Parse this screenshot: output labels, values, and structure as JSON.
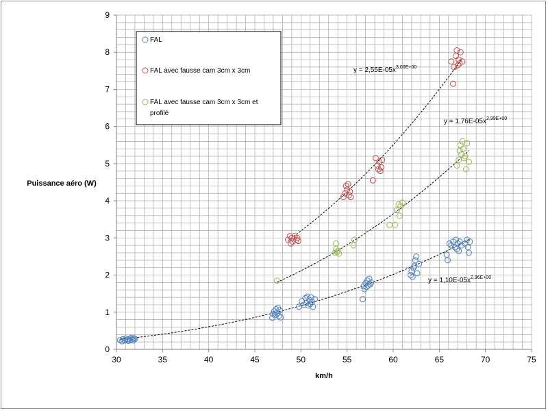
{
  "chart_data": {
    "type": "scatter",
    "xlabel": "km/h",
    "ylabel": "Puissance aéro (W)",
    "xlim": [
      30,
      75
    ],
    "ylim": [
      0,
      9
    ],
    "xticks": [
      30,
      35,
      40,
      45,
      50,
      55,
      60,
      65,
      70,
      75
    ],
    "yticks": [
      0,
      1,
      2,
      3,
      4,
      5,
      6,
      7,
      8,
      9
    ],
    "grid": true,
    "legend_position": "top-left",
    "series": [
      {
        "name": "FAL",
        "color": "#4f81bd",
        "points": [
          [
            30.4,
            0.25
          ],
          [
            30.6,
            0.22
          ],
          [
            30.7,
            0.27
          ],
          [
            30.9,
            0.24
          ],
          [
            31.0,
            0.29
          ],
          [
            31.1,
            0.26
          ],
          [
            31.3,
            0.23
          ],
          [
            31.4,
            0.28
          ],
          [
            31.5,
            0.25
          ],
          [
            31.6,
            0.31
          ],
          [
            31.7,
            0.27
          ],
          [
            31.8,
            0.24
          ],
          [
            31.9,
            0.3
          ],
          [
            32.0,
            0.28
          ],
          [
            46.9,
            0.85
          ],
          [
            47.0,
            0.95
          ],
          [
            47.1,
            1.02
          ],
          [
            47.2,
            0.92
          ],
          [
            47.3,
            1.08
          ],
          [
            47.4,
            0.98
          ],
          [
            47.5,
            1.12
          ],
          [
            47.6,
            0.9
          ],
          [
            47.7,
            1.05
          ],
          [
            47.8,
            0.86
          ],
          [
            49.8,
            1.15
          ],
          [
            50.1,
            1.3
          ],
          [
            50.3,
            1.2
          ],
          [
            50.5,
            1.38
          ],
          [
            50.6,
            1.25
          ],
          [
            50.7,
            1.42
          ],
          [
            50.8,
            1.18
          ],
          [
            50.9,
            1.33
          ],
          [
            51.0,
            1.22
          ],
          [
            51.1,
            1.4
          ],
          [
            51.2,
            1.28
          ],
          [
            51.3,
            1.15
          ],
          [
            51.5,
            1.35
          ],
          [
            56.7,
            1.35
          ],
          [
            56.8,
            1.7
          ],
          [
            56.9,
            1.62
          ],
          [
            57.0,
            1.78
          ],
          [
            57.1,
            1.68
          ],
          [
            57.2,
            1.85
          ],
          [
            57.3,
            1.72
          ],
          [
            57.4,
            1.9
          ],
          [
            57.5,
            1.75
          ],
          [
            57.6,
            1.8
          ],
          [
            61.9,
            2.0
          ],
          [
            62.0,
            2.1
          ],
          [
            62.1,
            1.95
          ],
          [
            62.2,
            2.2
          ],
          [
            62.3,
            2.25
          ],
          [
            62.4,
            2.4
          ],
          [
            62.5,
            2.5
          ],
          [
            62.6,
            2.05
          ],
          [
            62.8,
            2.3
          ],
          [
            65.8,
            2.55
          ],
          [
            65.9,
            2.4
          ],
          [
            66.1,
            2.85
          ],
          [
            66.3,
            2.8
          ],
          [
            66.5,
            2.9
          ],
          [
            66.7,
            2.75
          ],
          [
            66.8,
            2.95
          ],
          [
            66.9,
            2.7
          ],
          [
            67.0,
            2.85
          ],
          [
            67.1,
            2.65
          ],
          [
            67.2,
            2.9
          ],
          [
            67.4,
            2.8
          ],
          [
            67.8,
            2.85
          ],
          [
            68.0,
            2.95
          ],
          [
            68.1,
            2.75
          ],
          [
            68.2,
            2.6
          ],
          [
            68.3,
            2.9
          ]
        ]
      },
      {
        "name": "FAL avec fausse cam 3cm x 3cm",
        "color": "#c0504d",
        "points": [
          [
            48.6,
            2.95
          ],
          [
            48.8,
            3.05
          ],
          [
            48.9,
            2.85
          ],
          [
            49.0,
            3.0
          ],
          [
            49.1,
            2.9
          ],
          [
            49.3,
            3.05
          ],
          [
            49.5,
            2.95
          ],
          [
            49.6,
            3.0
          ],
          [
            49.7,
            2.92
          ],
          [
            54.6,
            4.1
          ],
          [
            54.8,
            4.2
          ],
          [
            54.9,
            4.4
          ],
          [
            55.0,
            4.3
          ],
          [
            55.1,
            4.45
          ],
          [
            55.2,
            4.15
          ],
          [
            55.3,
            4.25
          ],
          [
            55.4,
            4.1
          ],
          [
            57.8,
            4.55
          ],
          [
            58.1,
            5.15
          ],
          [
            58.3,
            4.95
          ],
          [
            58.4,
            4.85
          ],
          [
            58.5,
            5.05
          ],
          [
            58.6,
            4.8
          ],
          [
            58.7,
            4.9
          ],
          [
            58.8,
            5.1
          ],
          [
            66.3,
            7.75
          ],
          [
            66.5,
            7.15
          ],
          [
            66.6,
            7.6
          ],
          [
            66.8,
            7.9
          ],
          [
            66.9,
            8.05
          ],
          [
            67.0,
            7.65
          ],
          [
            67.1,
            7.8
          ],
          [
            67.2,
            7.7
          ],
          [
            67.3,
            8.0
          ],
          [
            67.5,
            7.75
          ]
        ]
      },
      {
        "name": "FAL avec fausse cam 3cm x 3cm et profilé",
        "color": "#9bbb59",
        "points": [
          [
            47.4,
            1.85
          ],
          [
            53.7,
            2.6
          ],
          [
            53.8,
            2.7
          ],
          [
            53.9,
            2.62
          ],
          [
            54.0,
            2.65
          ],
          [
            54.1,
            2.58
          ],
          [
            53.8,
            2.85
          ],
          [
            55.7,
            2.8
          ],
          [
            55.8,
            2.95
          ],
          [
            59.6,
            3.35
          ],
          [
            60.2,
            3.35
          ],
          [
            60.4,
            3.75
          ],
          [
            60.6,
            3.9
          ],
          [
            60.7,
            3.6
          ],
          [
            60.8,
            3.85
          ],
          [
            61.0,
            3.95
          ],
          [
            66.9,
            4.95
          ],
          [
            67.1,
            5.1
          ],
          [
            67.2,
            5.35
          ],
          [
            67.3,
            5.5
          ],
          [
            67.4,
            5.25
          ],
          [
            67.5,
            5.6
          ],
          [
            67.6,
            5.4
          ],
          [
            67.7,
            5.15
          ],
          [
            67.8,
            5.2
          ],
          [
            67.9,
            4.85
          ],
          [
            68.0,
            5.55
          ],
          [
            68.2,
            5.05
          ]
        ]
      }
    ],
    "trendlines": [
      {
        "series": "FAL",
        "coef": 1.1e-05,
        "exp": 2.96,
        "x_range": [
          30.4,
          68.3
        ],
        "label": "y = 1,10E-05x",
        "label_exp": "2,96E+00"
      },
      {
        "series": "FAL avec fausse cam 3cm x 3cm",
        "coef": 2.55e-05,
        "exp": 3.0,
        "x_range": [
          48.6,
          67.5
        ],
        "label": "y = 2,55E-05x",
        "label_exp": "3,00E+00"
      },
      {
        "series": "FAL avec fausse cam 3cm x 3cm et profilé",
        "coef": 1.76e-05,
        "exp": 2.99,
        "x_range": [
          47.4,
          68.2
        ],
        "label": "y = 1,76E-05x",
        "label_exp": "2,99E+00"
      }
    ],
    "legend": {
      "entries": [
        [
          "FAL"
        ],
        [
          "FAL avec fausse cam 3cm x 3cm"
        ],
        [
          "FAL avec fausse cam 3cm x 3cm et",
          "profilé"
        ]
      ]
    }
  }
}
